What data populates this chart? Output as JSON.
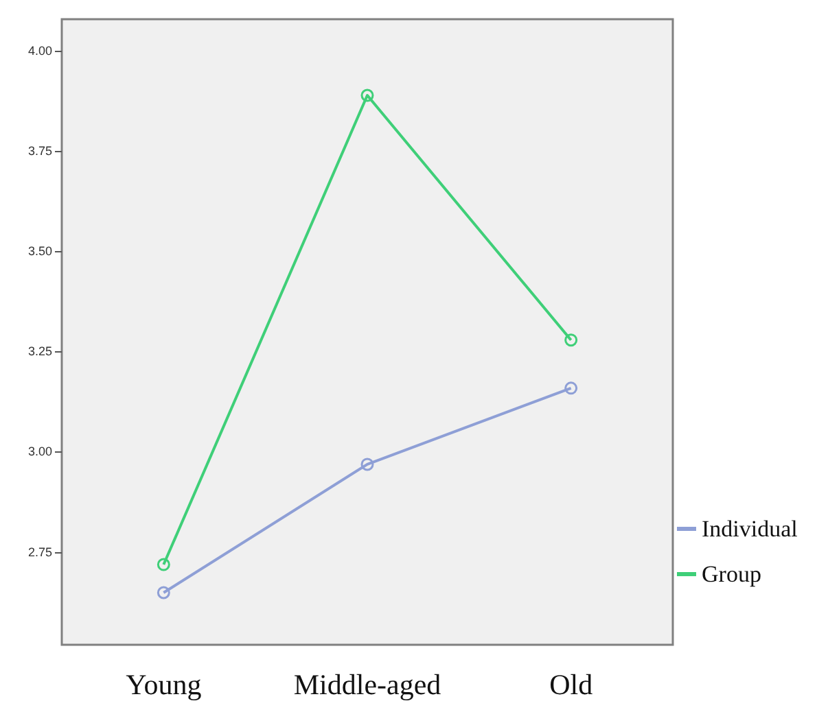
{
  "chart_data": {
    "type": "line",
    "categories": [
      "Young",
      "Middle-aged",
      "Old"
    ],
    "series": [
      {
        "name": "Individual",
        "color": "#8e9fd6",
        "values": [
          2.65,
          2.97,
          3.16
        ]
      },
      {
        "name": "Group",
        "color": "#3fcf78",
        "values": [
          2.72,
          3.89,
          3.28
        ]
      }
    ],
    "ylim": [
      2.52,
      4.08
    ],
    "yticks": [
      {
        "value": 2.75,
        "label": "2.75"
      },
      {
        "value": 3,
        "label": "3.00"
      },
      {
        "value": 3.25,
        "label": "3.25"
      },
      {
        "value": 3.5,
        "label": "3.50"
      },
      {
        "value": 3.75,
        "label": "3.75"
      },
      {
        "value": 4,
        "label": "4.00"
      }
    ],
    "grid": false,
    "legend": "right",
    "marker": "circle",
    "line_style": "solid"
  }
}
